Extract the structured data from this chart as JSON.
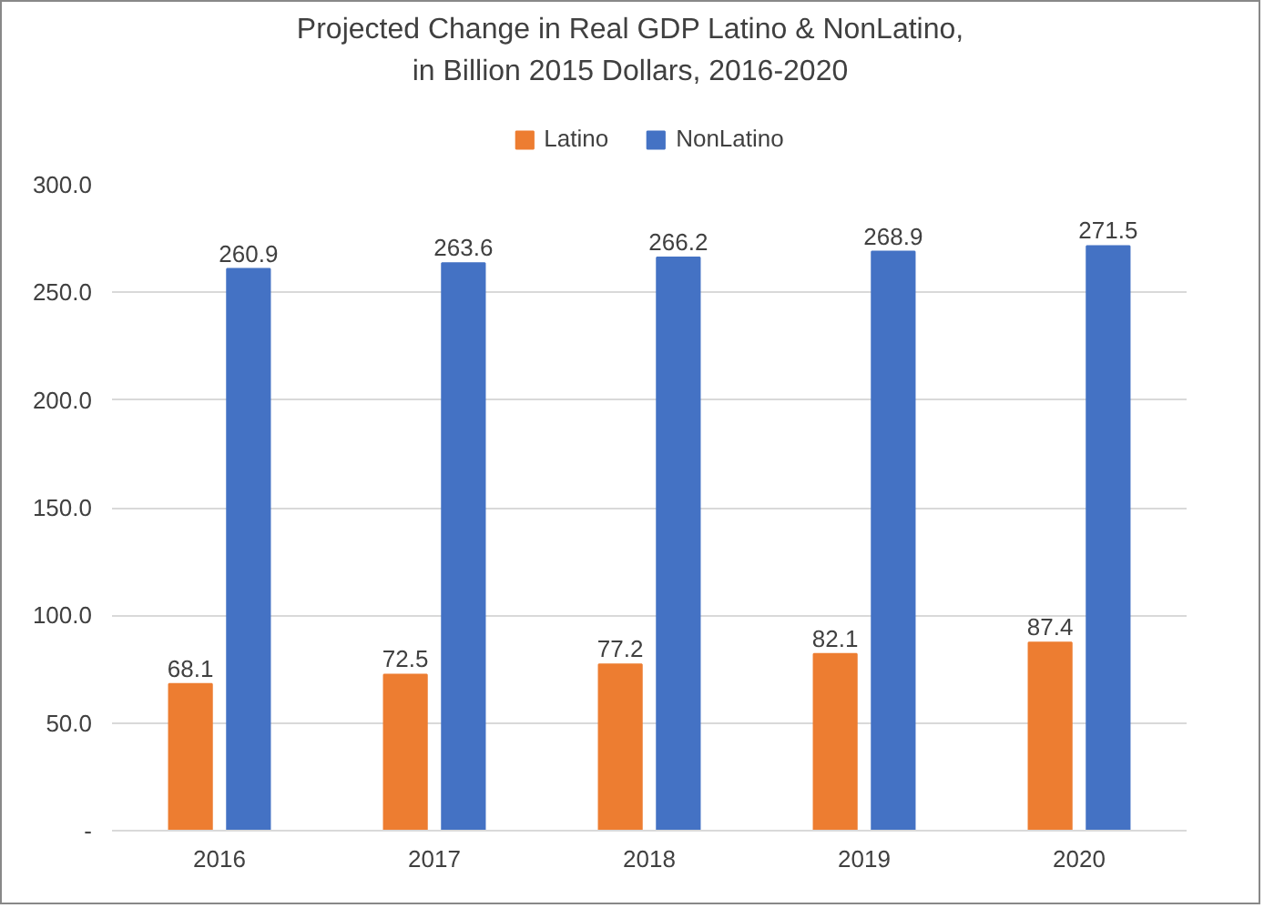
{
  "chart_data": {
    "type": "bar",
    "title": "Projected Change in Real GDP Latino & NonLatino,\nin Billion 2015 Dollars, 2016-2020",
    "categories": [
      "2016",
      "2017",
      "2018",
      "2019",
      "2020"
    ],
    "series": [
      {
        "name": "Latino",
        "color": "#ed7d31",
        "values": [
          68.1,
          72.5,
          77.2,
          82.1,
          87.4
        ]
      },
      {
        "name": "NonLatino",
        "color": "#4472c4",
        "values": [
          260.9,
          263.6,
          266.2,
          268.9,
          271.5
        ]
      }
    ],
    "ylim": [
      0,
      300
    ],
    "yticks": [
      {
        "value": 0,
        "label": "-"
      },
      {
        "value": 50,
        "label": "50.0"
      },
      {
        "value": 100,
        "label": "100.0"
      },
      {
        "value": 150,
        "label": "150.0"
      },
      {
        "value": 200,
        "label": "200.0"
      },
      {
        "value": 250,
        "label": "250.0"
      },
      {
        "value": 300,
        "label": "300.0"
      }
    ],
    "grid": "y",
    "legend": "top",
    "data_labels": true
  }
}
